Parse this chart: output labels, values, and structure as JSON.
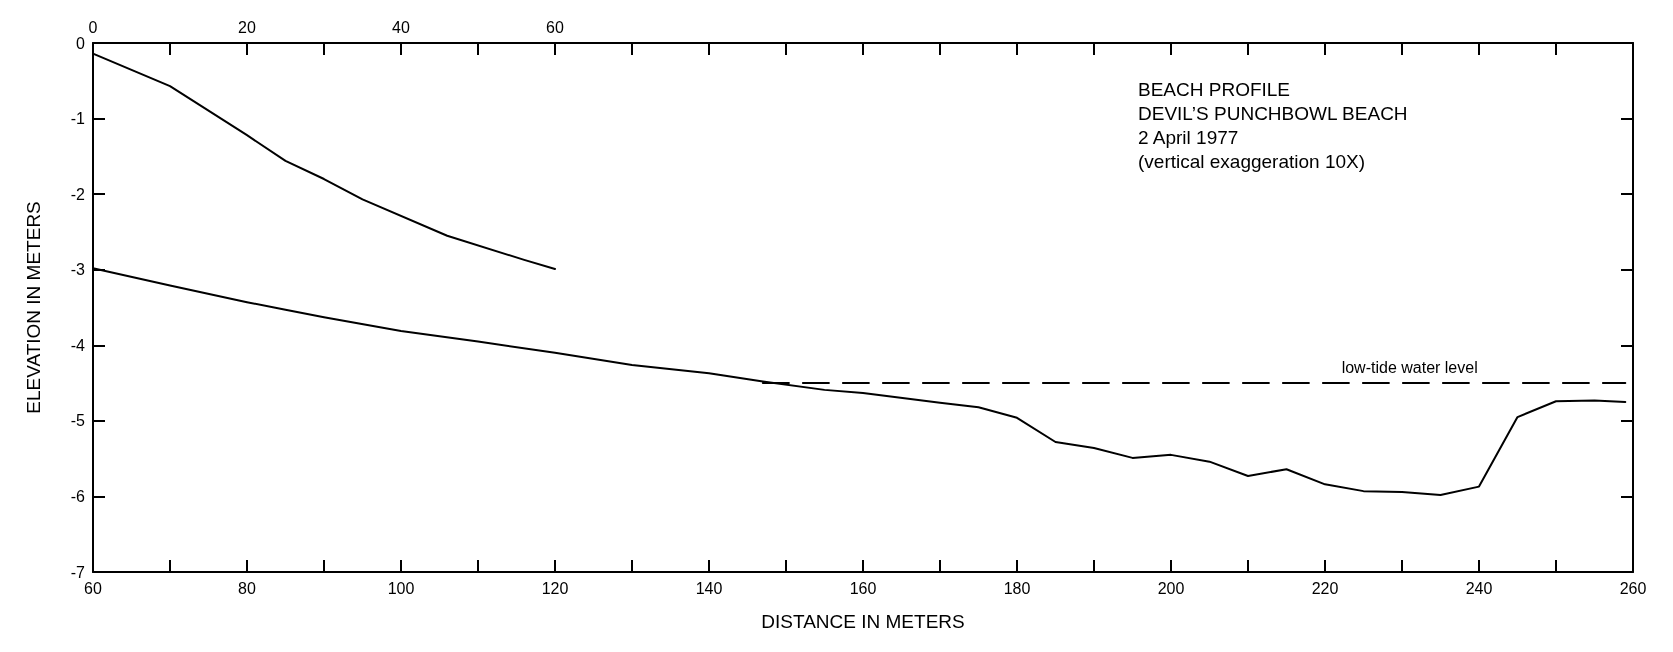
{
  "chart_data": {
    "type": "line",
    "title": "BEACH PROFILE",
    "subtitle": "DEVIL’S PUNCHBOWL BEACH",
    "annotations": [
      "2 April 1977",
      "(vertical exaggeration 10X)"
    ],
    "xlabel": "DISTANCE IN METERS",
    "ylabel": "ELEVATION IN METERS",
    "xlim": [
      60,
      260
    ],
    "xticks": [
      60,
      {
        "value": 70,
        "label": null
      },
      80,
      {
        "value": 90,
        "label": null
      },
      100,
      {
        "value": 110,
        "label": null
      },
      120,
      {
        "value": 130,
        "label": null
      },
      140,
      {
        "value": 150,
        "label": null
      },
      160,
      {
        "value": 170,
        "label": null
      },
      180,
      {
        "value": 190,
        "label": null
      },
      200,
      {
        "value": 210,
        "label": null
      },
      220,
      {
        "value": 230,
        "label": null
      },
      240,
      {
        "value": 250,
        "label": null
      },
      260
    ],
    "x2lim": [
      0,
      200
    ],
    "x2ticks": [
      0,
      {
        "value": 10,
        "label": null
      },
      20,
      {
        "value": 30,
        "label": null
      },
      40,
      {
        "value": 50,
        "label": null
      },
      60,
      {
        "value": 70,
        "label": null
      },
      {
        "value": 80,
        "label": null
      },
      {
        "value": 90,
        "label": null
      },
      {
        "value": 100,
        "label": null
      },
      {
        "value": 110,
        "label": null
      },
      {
        "value": 120,
        "label": null
      },
      {
        "value": 130,
        "label": null
      },
      {
        "value": 140,
        "label": null
      },
      {
        "value": 150,
        "label": null
      },
      {
        "value": 160,
        "label": null
      },
      {
        "value": 170,
        "label": null
      },
      {
        "value": 180,
        "label": null
      },
      {
        "value": 190,
        "label": null
      },
      {
        "value": 200,
        "label": null
      }
    ],
    "ylim": [
      -7,
      0
    ],
    "yticks": [
      -7,
      -6,
      -5,
      -4,
      -3,
      -2,
      -1,
      0
    ],
    "grid": false,
    "legend": false,
    "marker": "none",
    "line_style": "solid",
    "series": [
      {
        "color": "#000000",
        "axis": "x2",
        "x": [
          0,
          10,
          20,
          25,
          30,
          35,
          46,
          56,
          60
        ],
        "values": [
          -0.14,
          -0.57,
          -1.22,
          -1.56,
          -1.8,
          -2.07,
          -2.55,
          -2.87,
          -2.99
        ]
      },
      {
        "color": "#000000",
        "x": [
          60,
          70,
          80,
          85,
          90,
          100,
          110,
          120,
          130,
          140,
          147,
          155,
          160,
          170,
          175,
          180,
          185,
          190,
          195,
          200,
          205,
          210,
          215,
          220,
          225,
          230,
          235,
          240,
          245,
          250,
          255,
          259
        ],
        "values": [
          -2.98,
          -3.21,
          -3.43,
          -3.53,
          -3.63,
          -3.81,
          -3.95,
          -4.1,
          -4.26,
          -4.37,
          -4.48,
          -4.59,
          -4.63,
          -4.76,
          -4.82,
          -4.96,
          -5.28,
          -5.36,
          -5.49,
          -5.45,
          -5.54,
          -5.73,
          -5.64,
          -5.84,
          -5.93,
          -5.94,
          -5.98,
          -5.87,
          -4.95,
          -4.74,
          -4.73,
          -4.75
        ]
      },
      {
        "name": "low-tide water level",
        "color": "#000000",
        "line_style": "dashed",
        "x": [
          147,
          259
        ],
        "values": [
          -4.5,
          -4.5
        ]
      }
    ]
  }
}
